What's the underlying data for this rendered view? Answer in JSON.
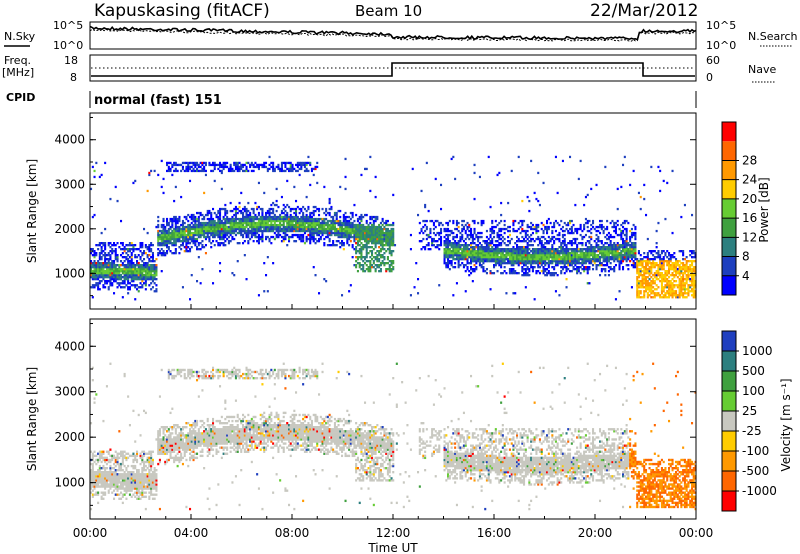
{
  "header": {
    "station": "Kapuskasing (fitACF)",
    "beam": "Beam 10",
    "date": "22/Mar/2012"
  },
  "top_panels": {
    "nsky_label": "N.Sky",
    "nsearch_label": "N.Search",
    "nsky_ticks": [
      "10^5",
      "10^0"
    ],
    "nsearch_ticks": [
      "10^5",
      "10^0"
    ],
    "freq_label_line1": "Freq.",
    "freq_label_line2": "[MHz]",
    "freq_ticks": [
      "18",
      "8"
    ],
    "nave_label": "Nave",
    "nave_ticks": [
      "60",
      "0"
    ],
    "cpid_label": "CPID",
    "cpid_text": "normal (fast) 151"
  },
  "colors": {
    "power_scale": [
      "#0000ff",
      "#1d3fbf",
      "#2c7f7f",
      "#3fa03f",
      "#66cc33",
      "#ffcc00",
      "#ff9900",
      "#ff6600",
      "#ff0000"
    ],
    "velocity_scale": [
      "#1f3fbf",
      "#2c7f7f",
      "#3fa03f",
      "#66cc33",
      "#c8c8c0",
      "#ffcc00",
      "#ff9900",
      "#ff6600",
      "#ff0000"
    ]
  },
  "chart_data": [
    {
      "type": "heatmap",
      "name": "power",
      "ylabel": "Slant Range [km]",
      "yticks": [
        "1000",
        "2000",
        "3000",
        "4000"
      ],
      "ylim": [
        200,
        4600
      ],
      "colorbar_label": "Power [dB]",
      "colorbar_ticks": [
        "4",
        "8",
        "12",
        "16",
        "20",
        "24",
        "28"
      ],
      "bands": [
        {
          "t": [
            0,
            2.5
          ],
          "r": [
            850,
            1150
          ],
          "level": 1
        },
        {
          "t": [
            2.5,
            12
          ],
          "r": [
            1700,
            2100
          ],
          "level": 2
        },
        {
          "t": [
            14,
            21.5
          ],
          "r": [
            1200,
            1700
          ],
          "level": 1
        },
        {
          "t": [
            14,
            21.5
          ],
          "r": [
            1250,
            1450
          ],
          "level": 4
        }
      ]
    },
    {
      "type": "heatmap",
      "name": "velocity",
      "xlabel": "Time UT",
      "xticks": [
        "00:00",
        "04:00",
        "08:00",
        "12:00",
        "16:00",
        "20:00",
        "00:00"
      ],
      "xlim": [
        0,
        24
      ],
      "ylabel": "Slant Range [km]",
      "yticks": [
        "1000",
        "2000",
        "3000",
        "4000"
      ],
      "ylim": [
        200,
        4600
      ],
      "colorbar_label": "Velocity [m s⁻¹]",
      "colorbar_ticks": [
        "1000",
        "500",
        "100",
        "25",
        "-25",
        "-100",
        "-500",
        "-1000"
      ]
    }
  ]
}
